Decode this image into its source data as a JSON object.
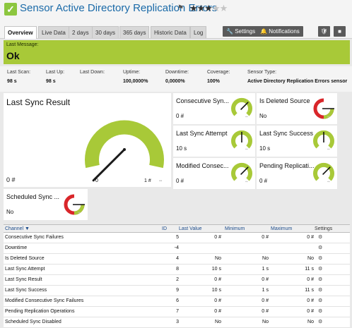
{
  "header": {
    "prefix": "Sensor",
    "name": "Active Directory Replication Errors",
    "check_glyph": "✓",
    "flag_glyph": "⚑",
    "stars_on": "★★★",
    "stars_off": "★★",
    "ok_color": "#8cc63f"
  },
  "tabs": [
    {
      "label": "Overview",
      "active": true
    },
    {
      "label": "Live Data"
    },
    {
      "label": "2 days"
    },
    {
      "label": "30 days"
    },
    {
      "label": "365 days"
    },
    {
      "label": "Historic Data"
    },
    {
      "label": "Log"
    }
  ],
  "toolbar": {
    "settings_label": "Settings",
    "notifications_label": "Notifications",
    "settings_icon": "wrench-icon",
    "notifications_icon": "bell-icon"
  },
  "status": {
    "label": "Last Message:",
    "value": "Ok",
    "color": "#a8c938"
  },
  "info": [
    {
      "key": "Last Scan:",
      "value": "98 s"
    },
    {
      "key": "Last Up:",
      "value": "98 s"
    },
    {
      "key": "Last Down:",
      "value": ""
    },
    {
      "key": "Uptime:",
      "value": "100,0000%"
    },
    {
      "key": "Downtime:",
      "value": "0,0000%"
    },
    {
      "key": "Coverage:",
      "value": "100%"
    },
    {
      "key": "Sensor Type:",
      "value": "Active Directory Replication Errors sensor"
    }
  ],
  "main_gauge": {
    "title": "Last Sync Result",
    "value": "0 #",
    "min_label": "0",
    "max_label": "1 #",
    "level": 0,
    "color": "#a8c938"
  },
  "gauges": [
    {
      "title": "Consecutive Syn...",
      "value": "0 #",
      "level": 0,
      "kind": "green"
    },
    {
      "title": "Is Deleted Source",
      "value": "No",
      "level": 0,
      "kind": "red"
    },
    {
      "title": "Last Sync Attempt",
      "value": "10 s",
      "level": 0.5,
      "kind": "green"
    },
    {
      "title": "Last Sync Success",
      "value": "10 s",
      "level": 0.5,
      "kind": "green"
    },
    {
      "title": "Modified Consec...",
      "value": "0 #",
      "level": 0,
      "kind": "green"
    },
    {
      "title": "Pending Replicati...",
      "value": "0 #",
      "level": 0,
      "kind": "green"
    },
    {
      "title": "Scheduled Sync ...",
      "value": "No",
      "level": 0,
      "kind": "red"
    }
  ],
  "table": {
    "headers": {
      "channel": "Channel ▼",
      "id": "ID",
      "last_value": "Last Value",
      "minimum": "Minimum",
      "maximum": "Maximum",
      "settings": "Settings"
    },
    "settings_glyph": "⚙",
    "rows": [
      {
        "channel": "Consecutive Sync Failures",
        "id": "5",
        "last": "0 #",
        "min": "0 #",
        "max": "0 #"
      },
      {
        "channel": "Downtime",
        "id": "-4",
        "last": "",
        "min": "",
        "max": ""
      },
      {
        "channel": "Is Deleted Source",
        "id": "4",
        "last": "No",
        "min": "No",
        "max": "No"
      },
      {
        "channel": "Last Sync Attempt",
        "id": "8",
        "last": "10 s",
        "min": "1 s",
        "max": "11 s"
      },
      {
        "channel": "Last Sync Result",
        "id": "2",
        "last": "0 #",
        "min": "0 #",
        "max": "0 #"
      },
      {
        "channel": "Last Sync Success",
        "id": "9",
        "last": "10 s",
        "min": "1 s",
        "max": "11 s"
      },
      {
        "channel": "Modified Consecutive Sync Failures",
        "id": "6",
        "last": "0 #",
        "min": "0 #",
        "max": "0 #"
      },
      {
        "channel": "Pending Replication Operations",
        "id": "7",
        "last": "0 #",
        "min": "0 #",
        "max": "0 #"
      },
      {
        "channel": "Scheduled Sync Disabled",
        "id": "3",
        "last": "No",
        "min": "No",
        "max": "No"
      }
    ]
  }
}
